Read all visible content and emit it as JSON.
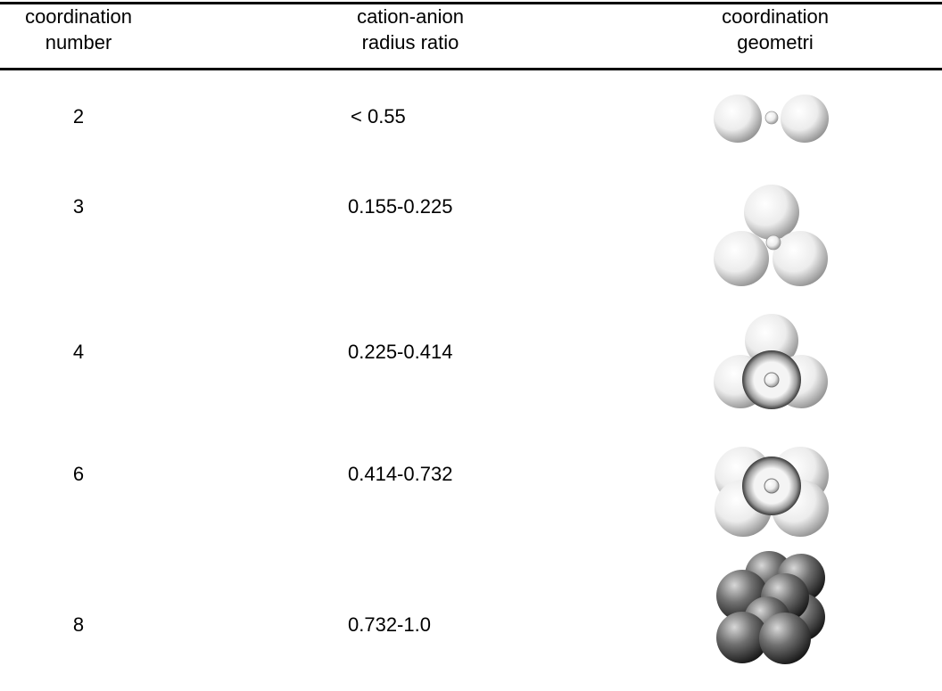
{
  "header": {
    "columns": [
      [
        "coordination",
        "number"
      ],
      [
        "cation-anion",
        "radius ratio"
      ],
      [
        "coordination",
        "geometri"
      ]
    ]
  },
  "rows": [
    [
      "2",
      "< 0.55"
    ],
    [
      "3",
      "0.155-0.225"
    ],
    [
      "4",
      "0.225-0.414"
    ],
    [
      "6",
      "0.414-0.732"
    ],
    [
      "8",
      "0.732-1.0"
    ]
  ]
}
